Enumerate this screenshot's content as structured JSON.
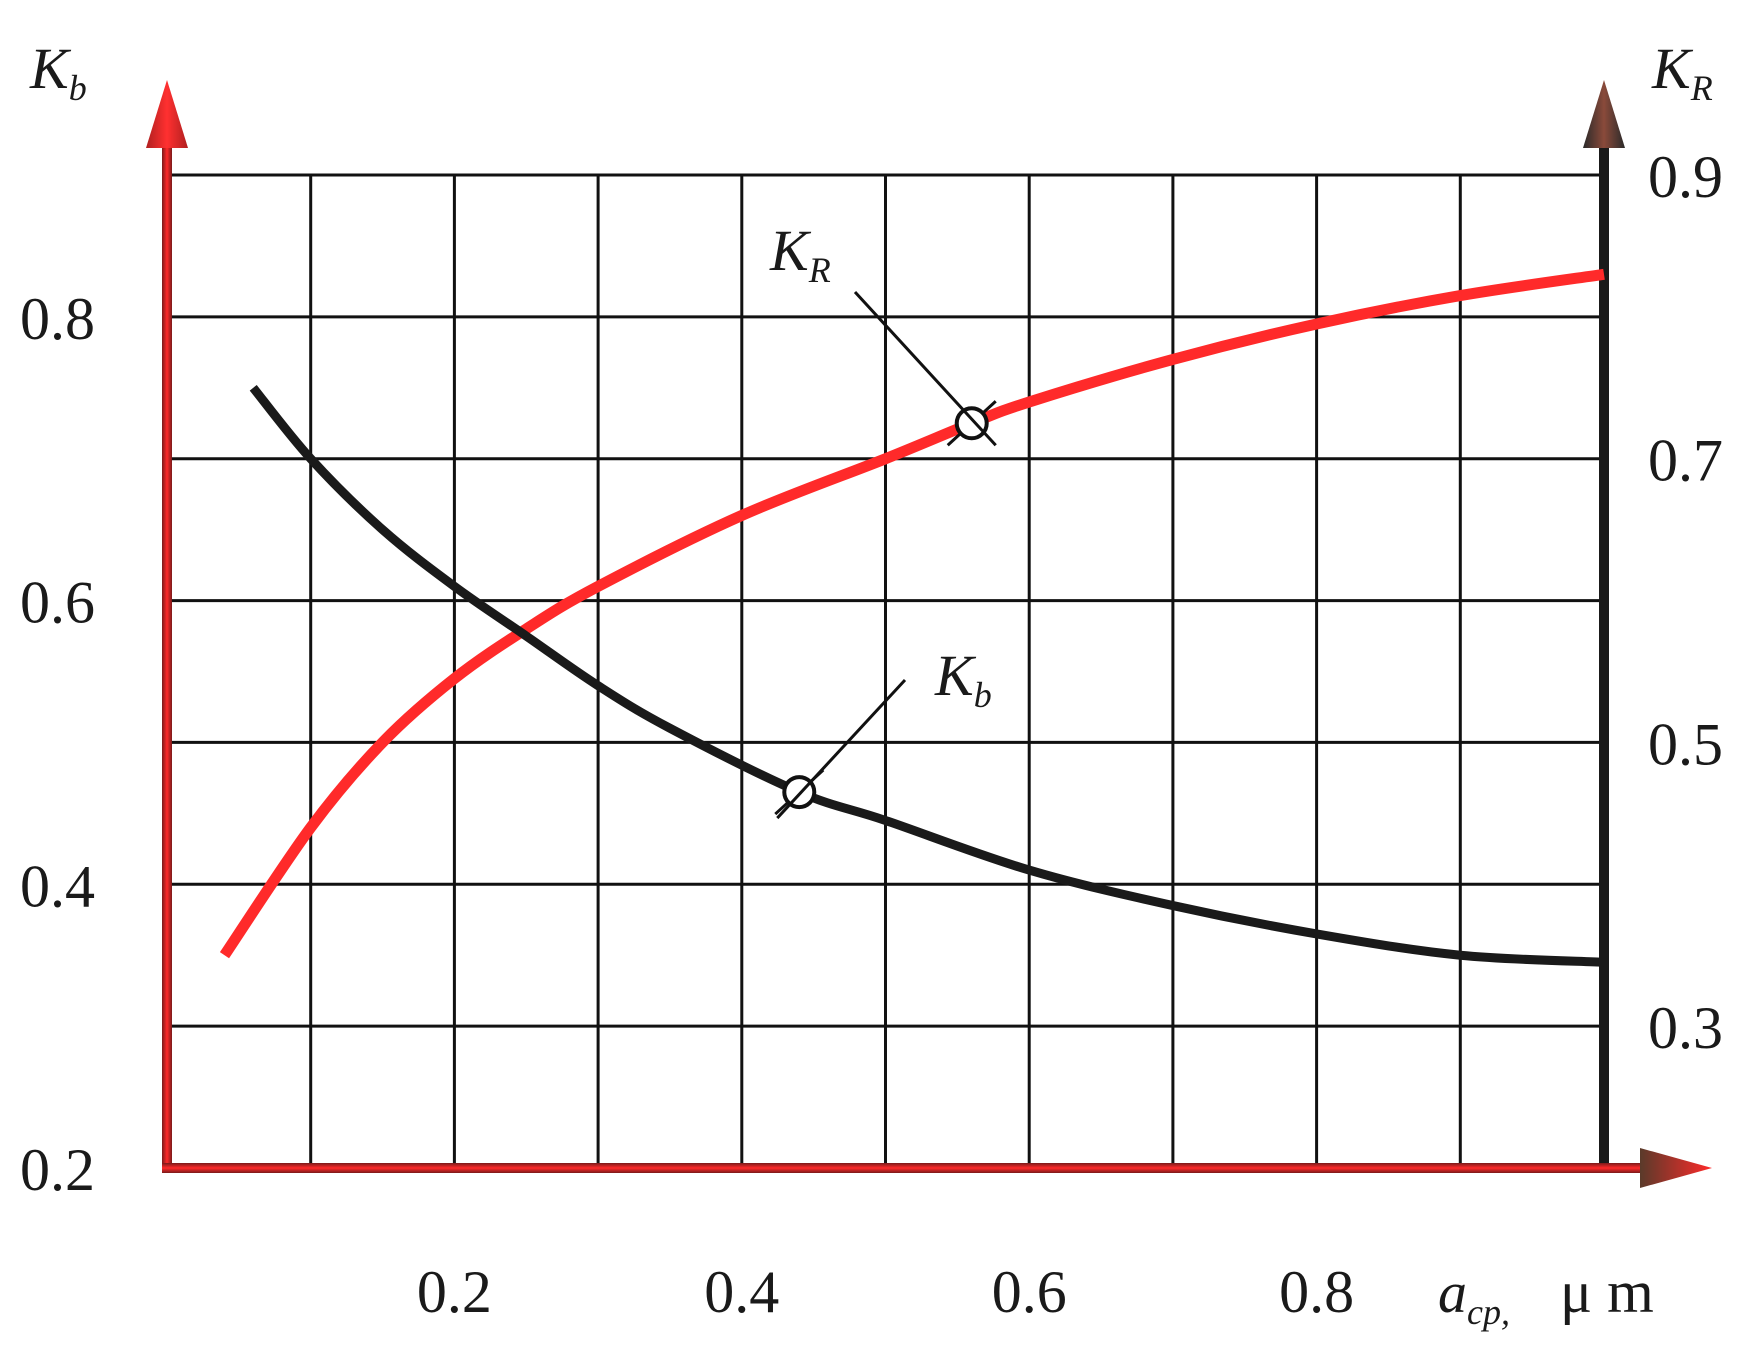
{
  "chart_data": {
    "type": "line",
    "x_axis": {
      "symbol": "a",
      "subscript": "cp",
      "separator": ",",
      "unit": "μ m",
      "ticks": [
        0.2,
        0.4,
        0.6,
        0.8
      ],
      "tick_labels": [
        "0.2",
        "0.4",
        "0.6",
        "0.8"
      ],
      "range": [
        0,
        1.0
      ]
    },
    "y_left": {
      "symbol": "K",
      "subscript": "b",
      "ticks": [
        0.2,
        0.4,
        0.6,
        0.8
      ],
      "tick_labels": [
        "0.2",
        "0.4",
        "0.6",
        "0.8"
      ],
      "range": [
        0.2,
        0.9
      ]
    },
    "y_right": {
      "symbol": "K",
      "subscript": "R",
      "ticks": [
        0.3,
        0.5,
        0.7,
        0.9
      ],
      "tick_labels": [
        "0.3",
        "0.5",
        "0.7",
        "0.9"
      ],
      "range": [
        0.2,
        0.9
      ]
    },
    "grid": true,
    "series": [
      {
        "name": "K_R",
        "label_symbol": "K",
        "label_subscript": "R",
        "axis": "right",
        "color": "#ff2a2a",
        "x": [
          0.04,
          0.1,
          0.15,
          0.2,
          0.25,
          0.3,
          0.4,
          0.5,
          0.56,
          0.6,
          0.7,
          0.8,
          0.9,
          1.0
        ],
        "y": [
          0.35,
          0.44,
          0.5,
          0.545,
          0.58,
          0.61,
          0.66,
          0.7,
          0.725,
          0.74,
          0.77,
          0.795,
          0.815,
          0.83
        ],
        "marker_x": 0.56,
        "marker_y": 0.725
      },
      {
        "name": "K_b",
        "label_symbol": "K",
        "label_subscript": "b",
        "axis": "left",
        "color": "#1a1a1a",
        "x": [
          0.06,
          0.1,
          0.15,
          0.2,
          0.25,
          0.3,
          0.35,
          0.44,
          0.5,
          0.6,
          0.7,
          0.8,
          0.9,
          1.0
        ],
        "y": [
          0.75,
          0.7,
          0.65,
          0.61,
          0.575,
          0.54,
          0.51,
          0.465,
          0.445,
          0.41,
          0.385,
          0.365,
          0.35,
          0.345
        ],
        "marker_x": 0.44,
        "marker_y": 0.465
      }
    ]
  }
}
